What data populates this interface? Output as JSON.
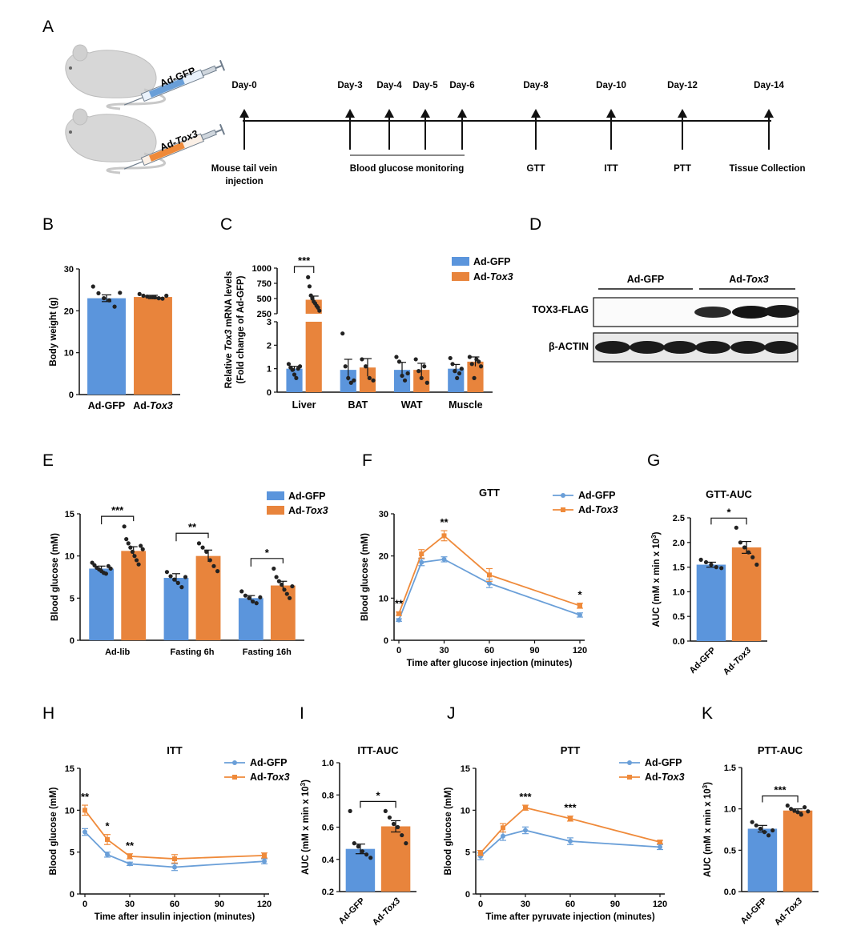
{
  "colors": {
    "gfp": "#6a9fd8",
    "tox3": "#ef8a3a",
    "gfp_bar": "#5b95dc",
    "tox3_bar": "#e8843c",
    "axis": "#111111"
  },
  "panel_A": {
    "letter": "A",
    "syringe_gfp": "Ad-GFP",
    "syringe_tox3_prefix": "Ad-",
    "syringe_tox3_gene": "Tox3",
    "days": [
      "Day-0",
      "Day-3",
      "Day-4",
      "Day-5",
      "Day-6",
      "Day-8",
      "Day-10",
      "Day-12",
      "Day-14"
    ],
    "label_injection_1": "Mouse tail vein",
    "label_injection_2": "injection",
    "label_monitoring": "Blood glucose monitoring",
    "label_gtt": "GTT",
    "label_itt": "ITT",
    "label_ptt": "PTT",
    "label_collection": "Tissue Collection"
  },
  "panel_B": {
    "letter": "B",
    "chart_data": {
      "type": "bar",
      "categories": [
        "Ad-GFP",
        "Ad-Tox3"
      ],
      "values": [
        23.0,
        23.3
      ],
      "errors": [
        0.8,
        0.4
      ],
      "points": [
        [
          25.8,
          24.2,
          23.0,
          22.5,
          21.0,
          24.3
        ],
        [
          24.0,
          23.6,
          23.4,
          23.3,
          23.2,
          23.0,
          22.9,
          23.6
        ]
      ],
      "ylabel": "Body weight (g)",
      "ylim": [
        0,
        30
      ],
      "yticks": [
        "0",
        "10",
        "20",
        "30"
      ],
      "xlabels": [
        {
          "plain": "Ad-GFP",
          "gene": ""
        },
        {
          "plain": "Ad-",
          "gene": "Tox3"
        }
      ]
    }
  },
  "panel_C": {
    "letter": "C",
    "chart_data": {
      "type": "bar",
      "categories": [
        "Liver",
        "BAT",
        "WAT",
        "Muscle"
      ],
      "series": [
        {
          "name": "Ad-GFP",
          "values": [
            1.0,
            0.95,
            0.95,
            1.0
          ],
          "errors": [
            0.1,
            0.45,
            0.32,
            0.18
          ],
          "points": [
            [
              1.2,
              1.05,
              0.95,
              0.75,
              0.6,
              1.0,
              1.1
            ],
            [
              2.5,
              1.1,
              0.6,
              0.4,
              0.5
            ],
            [
              1.5,
              1.3,
              0.7,
              0.5,
              0.8
            ],
            [
              1.45,
              1.2,
              0.9,
              0.6,
              0.8,
              1.0
            ]
          ]
        },
        {
          "name": "Ad-Tox3",
          "values": [
            480,
            1.05,
            0.95,
            1.3
          ],
          "errors": [
            60,
            0.38,
            0.28,
            0.2
          ],
          "points": [
            [
              850,
              700,
              550,
              500,
              450,
              420,
              380,
              350,
              300
            ],
            [
              1.4,
              1.1,
              0.6,
              0.5
            ],
            [
              1.4,
              0.9,
              0.6,
              1.1,
              0.4
            ],
            [
              1.5,
              1.2,
              0.6,
              1.4,
              1.3,
              1.1
            ]
          ]
        }
      ],
      "ylabel_part1": "Relative ",
      "ylabel_gene": "Tox3",
      "ylabel_part2": " mRNA levels",
      "ylabel2": "(Fold change of Ad-GFP)",
      "yticks_low": [
        "0",
        "1",
        "2",
        "3"
      ],
      "yticks_high": [
        "250",
        "500",
        "750",
        "1000"
      ],
      "significance": [
        {
          "category": "Liver",
          "label": "***"
        }
      ]
    }
  },
  "panel_D": {
    "letter": "D",
    "group_gfp": "Ad-GFP",
    "group_tox3_prefix": "Ad-",
    "group_tox3_gene": "Tox3",
    "band1": "TOX3-FLAG",
    "band2": "β-ACTIN"
  },
  "panel_E": {
    "letter": "E",
    "chart_data": {
      "type": "bar",
      "categories": [
        "Ad-lib",
        "Fasting 6h",
        "Fasting 16h"
      ],
      "series": [
        {
          "name": "Ad-GFP",
          "values": [
            8.5,
            7.4,
            5.0
          ],
          "errors": [
            0.3,
            0.5,
            0.3
          ],
          "points": [
            [
              9.2,
              8.9,
              8.6,
              8.4,
              8.2,
              8.0,
              7.9,
              8.8,
              8.5
            ],
            [
              8.1,
              7.6,
              7.2,
              6.8,
              6.3,
              7.5
            ],
            [
              5.8,
              5.3,
              5.0,
              4.6,
              4.4,
              5.1
            ]
          ]
        },
        {
          "name": "Ad-Tox3",
          "values": [
            10.6,
            10.0,
            6.5
          ],
          "errors": [
            0.5,
            0.7,
            0.5
          ],
          "points": [
            [
              13.5,
              12.0,
              11.5,
              11.0,
              10.5,
              10.0,
              9.5,
              9.0,
              11.2,
              10.8
            ],
            [
              11.5,
              11.0,
              10.5,
              9.5,
              8.8,
              8.2
            ],
            [
              8.5,
              7.5,
              7.0,
              6.6,
              6.0,
              5.5,
              5.0,
              6.4
            ]
          ]
        }
      ],
      "ylabel": "Blood glucose (mM)",
      "ylim": [
        0,
        15
      ],
      "yticks": [
        "0",
        "5",
        "10",
        "15"
      ],
      "significance": [
        "***",
        "**",
        "*"
      ]
    }
  },
  "panel_F": {
    "letter": "F",
    "chart_data": {
      "type": "line",
      "title": "GTT",
      "x": [
        0,
        15,
        30,
        60,
        120
      ],
      "series": [
        {
          "name": "Ad-GFP",
          "values": [
            4.8,
            18.5,
            19.2,
            13.5,
            6.0
          ],
          "errors": [
            0.3,
            0.8,
            0.6,
            1.0,
            0.5
          ]
        },
        {
          "name": "Ad-Tox3",
          "values": [
            6.3,
            20.5,
            24.8,
            15.5,
            8.2
          ],
          "errors": [
            0.4,
            1.0,
            1.2,
            1.5,
            0.6
          ]
        }
      ],
      "xlabel": "Time after glucose injection (minutes)",
      "ylabel": "Blood glucose (mM)",
      "xlim": [
        0,
        120
      ],
      "ylim": [
        0,
        30
      ],
      "xticks": [
        "0",
        "30",
        "60",
        "90",
        "120"
      ],
      "yticks": [
        "0",
        "10",
        "20",
        "30"
      ],
      "significance": [
        {
          "x": 0,
          "label": "**"
        },
        {
          "x": 30,
          "label": "**"
        },
        {
          "x": 120,
          "label": "*"
        }
      ],
      "legend": [
        {
          "plain": "Ad-GFP",
          "gene": ""
        },
        {
          "plain": "Ad-",
          "gene": "Tox3"
        }
      ]
    }
  },
  "panel_G": {
    "letter": "G",
    "chart_data": {
      "type": "bar",
      "title": "GTT-AUC",
      "categories": [
        "Ad-GFP",
        "Ad-Tox3"
      ],
      "values": [
        1.55,
        1.9
      ],
      "errors": [
        0.05,
        0.12
      ],
      "points": [
        [
          1.65,
          1.6,
          1.55,
          1.5,
          1.48
        ],
        [
          2.3,
          2.0,
          1.9,
          1.8,
          1.7,
          1.55
        ]
      ],
      "ylabel": "AUC (mM x min x 10^3)",
      "ylim": [
        0,
        2.5
      ],
      "yticks": [
        "0.0",
        "0.5",
        "1.0",
        "1.5",
        "2.0",
        "2.5"
      ],
      "significance": "*",
      "xlabels": [
        {
          "plain": "Ad-GFP",
          "gene": ""
        },
        {
          "plain": "Ad-",
          "gene": "Tox3"
        }
      ]
    }
  },
  "panel_H": {
    "letter": "H",
    "chart_data": {
      "type": "line",
      "title": "ITT",
      "x": [
        0,
        15,
        30,
        60,
        120
      ],
      "series": [
        {
          "name": "Ad-GFP",
          "values": [
            7.4,
            4.7,
            3.6,
            3.2,
            3.9
          ],
          "errors": [
            0.4,
            0.3,
            0.2,
            0.4,
            0.3
          ]
        },
        {
          "name": "Ad-Tox3",
          "values": [
            10.0,
            6.5,
            4.5,
            4.2,
            4.6
          ],
          "errors": [
            0.6,
            0.6,
            0.3,
            0.5,
            0.3
          ]
        }
      ],
      "xlabel": "Time after insulin injection (minutes)",
      "ylabel": "Blood glucose (mM)",
      "xlim": [
        0,
        120
      ],
      "ylim": [
        0,
        15
      ],
      "xticks": [
        "0",
        "30",
        "60",
        "90",
        "120"
      ],
      "yticks": [
        "0",
        "5",
        "10",
        "15"
      ],
      "significance": [
        {
          "x": 0,
          "label": "**"
        },
        {
          "x": 15,
          "label": "*"
        },
        {
          "x": 30,
          "label": "**"
        }
      ],
      "legend": [
        {
          "plain": "Ad-GFP",
          "gene": ""
        },
        {
          "plain": "Ad-",
          "gene": "Tox3"
        }
      ]
    }
  },
  "panel_I": {
    "letter": "I",
    "chart_data": {
      "type": "bar",
      "title": "ITT-AUC",
      "categories": [
        "Ad-GFP",
        "Ad-Tox3"
      ],
      "values": [
        0.465,
        0.605
      ],
      "errors": [
        0.03,
        0.035
      ],
      "points": [
        [
          0.7,
          0.5,
          0.48,
          0.45,
          0.43,
          0.41
        ],
        [
          0.7,
          0.66,
          0.62,
          0.6,
          0.55,
          0.5
        ]
      ],
      "ylabel": "AUC (mM x min x 10^3)",
      "ylim": [
        0.2,
        1.0
      ],
      "yticks": [
        "0.2",
        "0.4",
        "0.6",
        "0.8",
        "1.0"
      ],
      "significance": "*",
      "xlabels": [
        {
          "plain": "Ad-GFP",
          "gene": ""
        },
        {
          "plain": "Ad-",
          "gene": "Tox3"
        }
      ]
    }
  },
  "panel_J": {
    "letter": "J",
    "chart_data": {
      "type": "line",
      "title": "PTT",
      "x": [
        0,
        15,
        30,
        60,
        120
      ],
      "series": [
        {
          "name": "Ad-GFP",
          "values": [
            4.5,
            6.9,
            7.6,
            6.3,
            5.6
          ],
          "errors": [
            0.4,
            0.5,
            0.4,
            0.4,
            0.3
          ]
        },
        {
          "name": "Ad-Tox3",
          "values": [
            4.9,
            7.9,
            10.3,
            9.0,
            6.2
          ],
          "errors": [
            0.3,
            0.5,
            0.3,
            0.3,
            0.2
          ]
        }
      ],
      "xlabel": "Time after pyruvate injection (minutes)",
      "ylabel": "Blood glucose (mM)",
      "xlim": [
        0,
        120
      ],
      "ylim": [
        0,
        15
      ],
      "xticks": [
        "0",
        "30",
        "60",
        "90",
        "120"
      ],
      "yticks": [
        "0",
        "5",
        "10",
        "15"
      ],
      "significance": [
        {
          "x": 30,
          "label": "***"
        },
        {
          "x": 60,
          "label": "***"
        }
      ],
      "legend": [
        {
          "plain": "Ad-GFP",
          "gene": ""
        },
        {
          "plain": "Ad-",
          "gene": "Tox3"
        }
      ]
    }
  },
  "panel_K": {
    "letter": "K",
    "chart_data": {
      "type": "bar",
      "title": "PTT-AUC",
      "categories": [
        "Ad-GFP",
        "Ad-Tox3"
      ],
      "values": [
        0.76,
        0.98
      ],
      "errors": [
        0.04,
        0.02
      ],
      "points": [
        [
          0.84,
          0.8,
          0.76,
          0.72,
          0.68,
          0.74
        ],
        [
          1.04,
          1.0,
          0.98,
          0.96,
          0.93,
          1.02,
          0.97
        ]
      ],
      "ylabel": "AUC (mM x min x 10^3)",
      "ylim": [
        0.0,
        1.5
      ],
      "yticks": [
        "0.0",
        "0.5",
        "1.0",
        "1.5"
      ],
      "significance": "***",
      "xlabels": [
        {
          "plain": "Ad-GFP",
          "gene": ""
        },
        {
          "plain": "Ad-",
          "gene": "Tox3"
        }
      ]
    }
  }
}
